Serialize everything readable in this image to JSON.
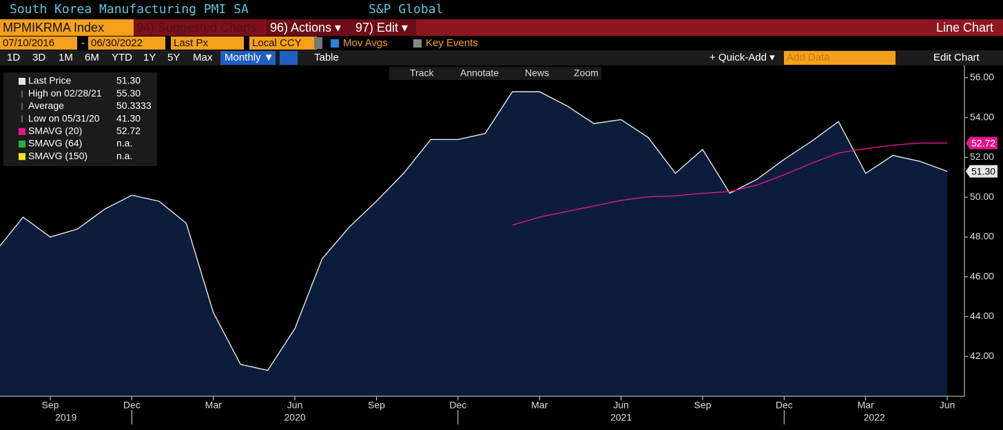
{
  "header": {
    "title": "South Korea Manufacturing PMI SA",
    "source": "S&P Global"
  },
  "toolbar": {
    "ticker": "MPMIKRMA Index",
    "suggested": "94) Suggested Charts",
    "actions": "96) Actions ▾",
    "edit": "97) Edit ▾",
    "chart_type": "Line Chart"
  },
  "settings": {
    "start_date": "07/10/2016",
    "separator": "-",
    "end_date": "06/30/2022",
    "field": "Last Px",
    "currency": "Local CCY",
    "mov_avgs": "Mov Avgs",
    "key_events": "Key Events"
  },
  "periods": [
    "1D",
    "3D",
    "1M",
    "6M",
    "YTD",
    "1Y",
    "5Y",
    "Max"
  ],
  "frequency": "Monthly ▼",
  "table": "Table",
  "quick_add": "+ Quick-Add ▾",
  "add_data": "Add Data",
  "edit_chart": "Edit Chart",
  "chart_tools": [
    "Track",
    "Annotate",
    "News",
    "Zoom"
  ],
  "legend_stats": [
    {
      "label": "High on 02/28/21",
      "value": "55.30"
    },
    {
      "label": "Average",
      "value": "50.3333"
    },
    {
      "label": "Low on 05/31/20",
      "value": "41.30"
    }
  ],
  "legend_ma": [
    {
      "label": "SMAVG (64)",
      "value": "n.a.",
      "color": "#20b24a"
    },
    {
      "label": "SMAVG (150)",
      "value": "n.a.",
      "color": "#f2e51c"
    }
  ],
  "chart_data": {
    "type": "area",
    "x": [
      "2019-07",
      "2019-08",
      "2019-09",
      "2019-10",
      "2019-11",
      "2019-12",
      "2020-01",
      "2020-02",
      "2020-03",
      "2020-04",
      "2020-05",
      "2020-06",
      "2020-07",
      "2020-08",
      "2020-09",
      "2020-10",
      "2020-11",
      "2020-12",
      "2021-01",
      "2021-02",
      "2021-03",
      "2021-04",
      "2021-05",
      "2021-06",
      "2021-07",
      "2021-08",
      "2021-09",
      "2021-10",
      "2021-11",
      "2021-12",
      "2022-01",
      "2022-02",
      "2022-03",
      "2022-04",
      "2022-05",
      "2022-06"
    ],
    "series": [
      {
        "name": "Last Price",
        "color": "#e8e8e8",
        "fill": "#0c1d3b",
        "last_label": "51.30",
        "values": [
          47.3,
          49.0,
          48.0,
          48.4,
          49.4,
          50.1,
          49.8,
          48.7,
          44.2,
          41.6,
          41.3,
          43.4,
          46.9,
          48.5,
          49.8,
          51.2,
          52.9,
          52.9,
          53.2,
          55.3,
          55.3,
          54.6,
          53.7,
          53.9,
          53.0,
          51.2,
          52.4,
          50.2,
          50.9,
          51.9,
          52.8,
          53.8,
          51.2,
          52.1,
          51.8,
          51.3
        ]
      },
      {
        "name": "SMAVG (20)",
        "color": "#e0178b",
        "last_label": "52.72",
        "values": [
          null,
          null,
          null,
          null,
          null,
          null,
          null,
          null,
          null,
          null,
          null,
          null,
          null,
          null,
          null,
          null,
          null,
          null,
          null,
          48.6,
          49.0,
          49.28,
          49.56,
          49.84,
          50.02,
          50.07,
          50.2,
          50.28,
          50.61,
          51.13,
          51.7,
          52.22,
          52.44,
          52.62,
          52.72,
          52.72
        ]
      }
    ],
    "xticks": [
      {
        "value": "2019-09",
        "label": "Sep"
      },
      {
        "value": "2019-12",
        "label": "Dec"
      },
      {
        "value": "2020-03",
        "label": "Mar"
      },
      {
        "value": "2020-06",
        "label": "Jun"
      },
      {
        "value": "2020-09",
        "label": "Sep"
      },
      {
        "value": "2020-12",
        "label": "Dec"
      },
      {
        "value": "2021-03",
        "label": "Mar"
      },
      {
        "value": "2021-06",
        "label": "Jun"
      },
      {
        "value": "2021-09",
        "label": "Sep"
      },
      {
        "value": "2021-12",
        "label": "Dec"
      },
      {
        "value": "2022-03",
        "label": "Mar"
      },
      {
        "value": "2022-06",
        "label": "Jun"
      }
    ],
    "years": [
      "2019",
      "2020",
      "2021",
      "2022"
    ],
    "ylim": [
      40,
      56.62
    ],
    "yticks": [
      {
        "value": 42,
        "label": "42.00"
      },
      {
        "value": 44,
        "label": "44.00"
      },
      {
        "value": 46,
        "label": "46.00"
      },
      {
        "value": 48,
        "label": "48.00"
      },
      {
        "value": 50,
        "label": "50.00"
      },
      {
        "value": 52,
        "label": "52.00"
      },
      {
        "value": 54,
        "label": "54.00"
      },
      {
        "value": 56,
        "label": "56.00"
      }
    ],
    "grid": false
  }
}
